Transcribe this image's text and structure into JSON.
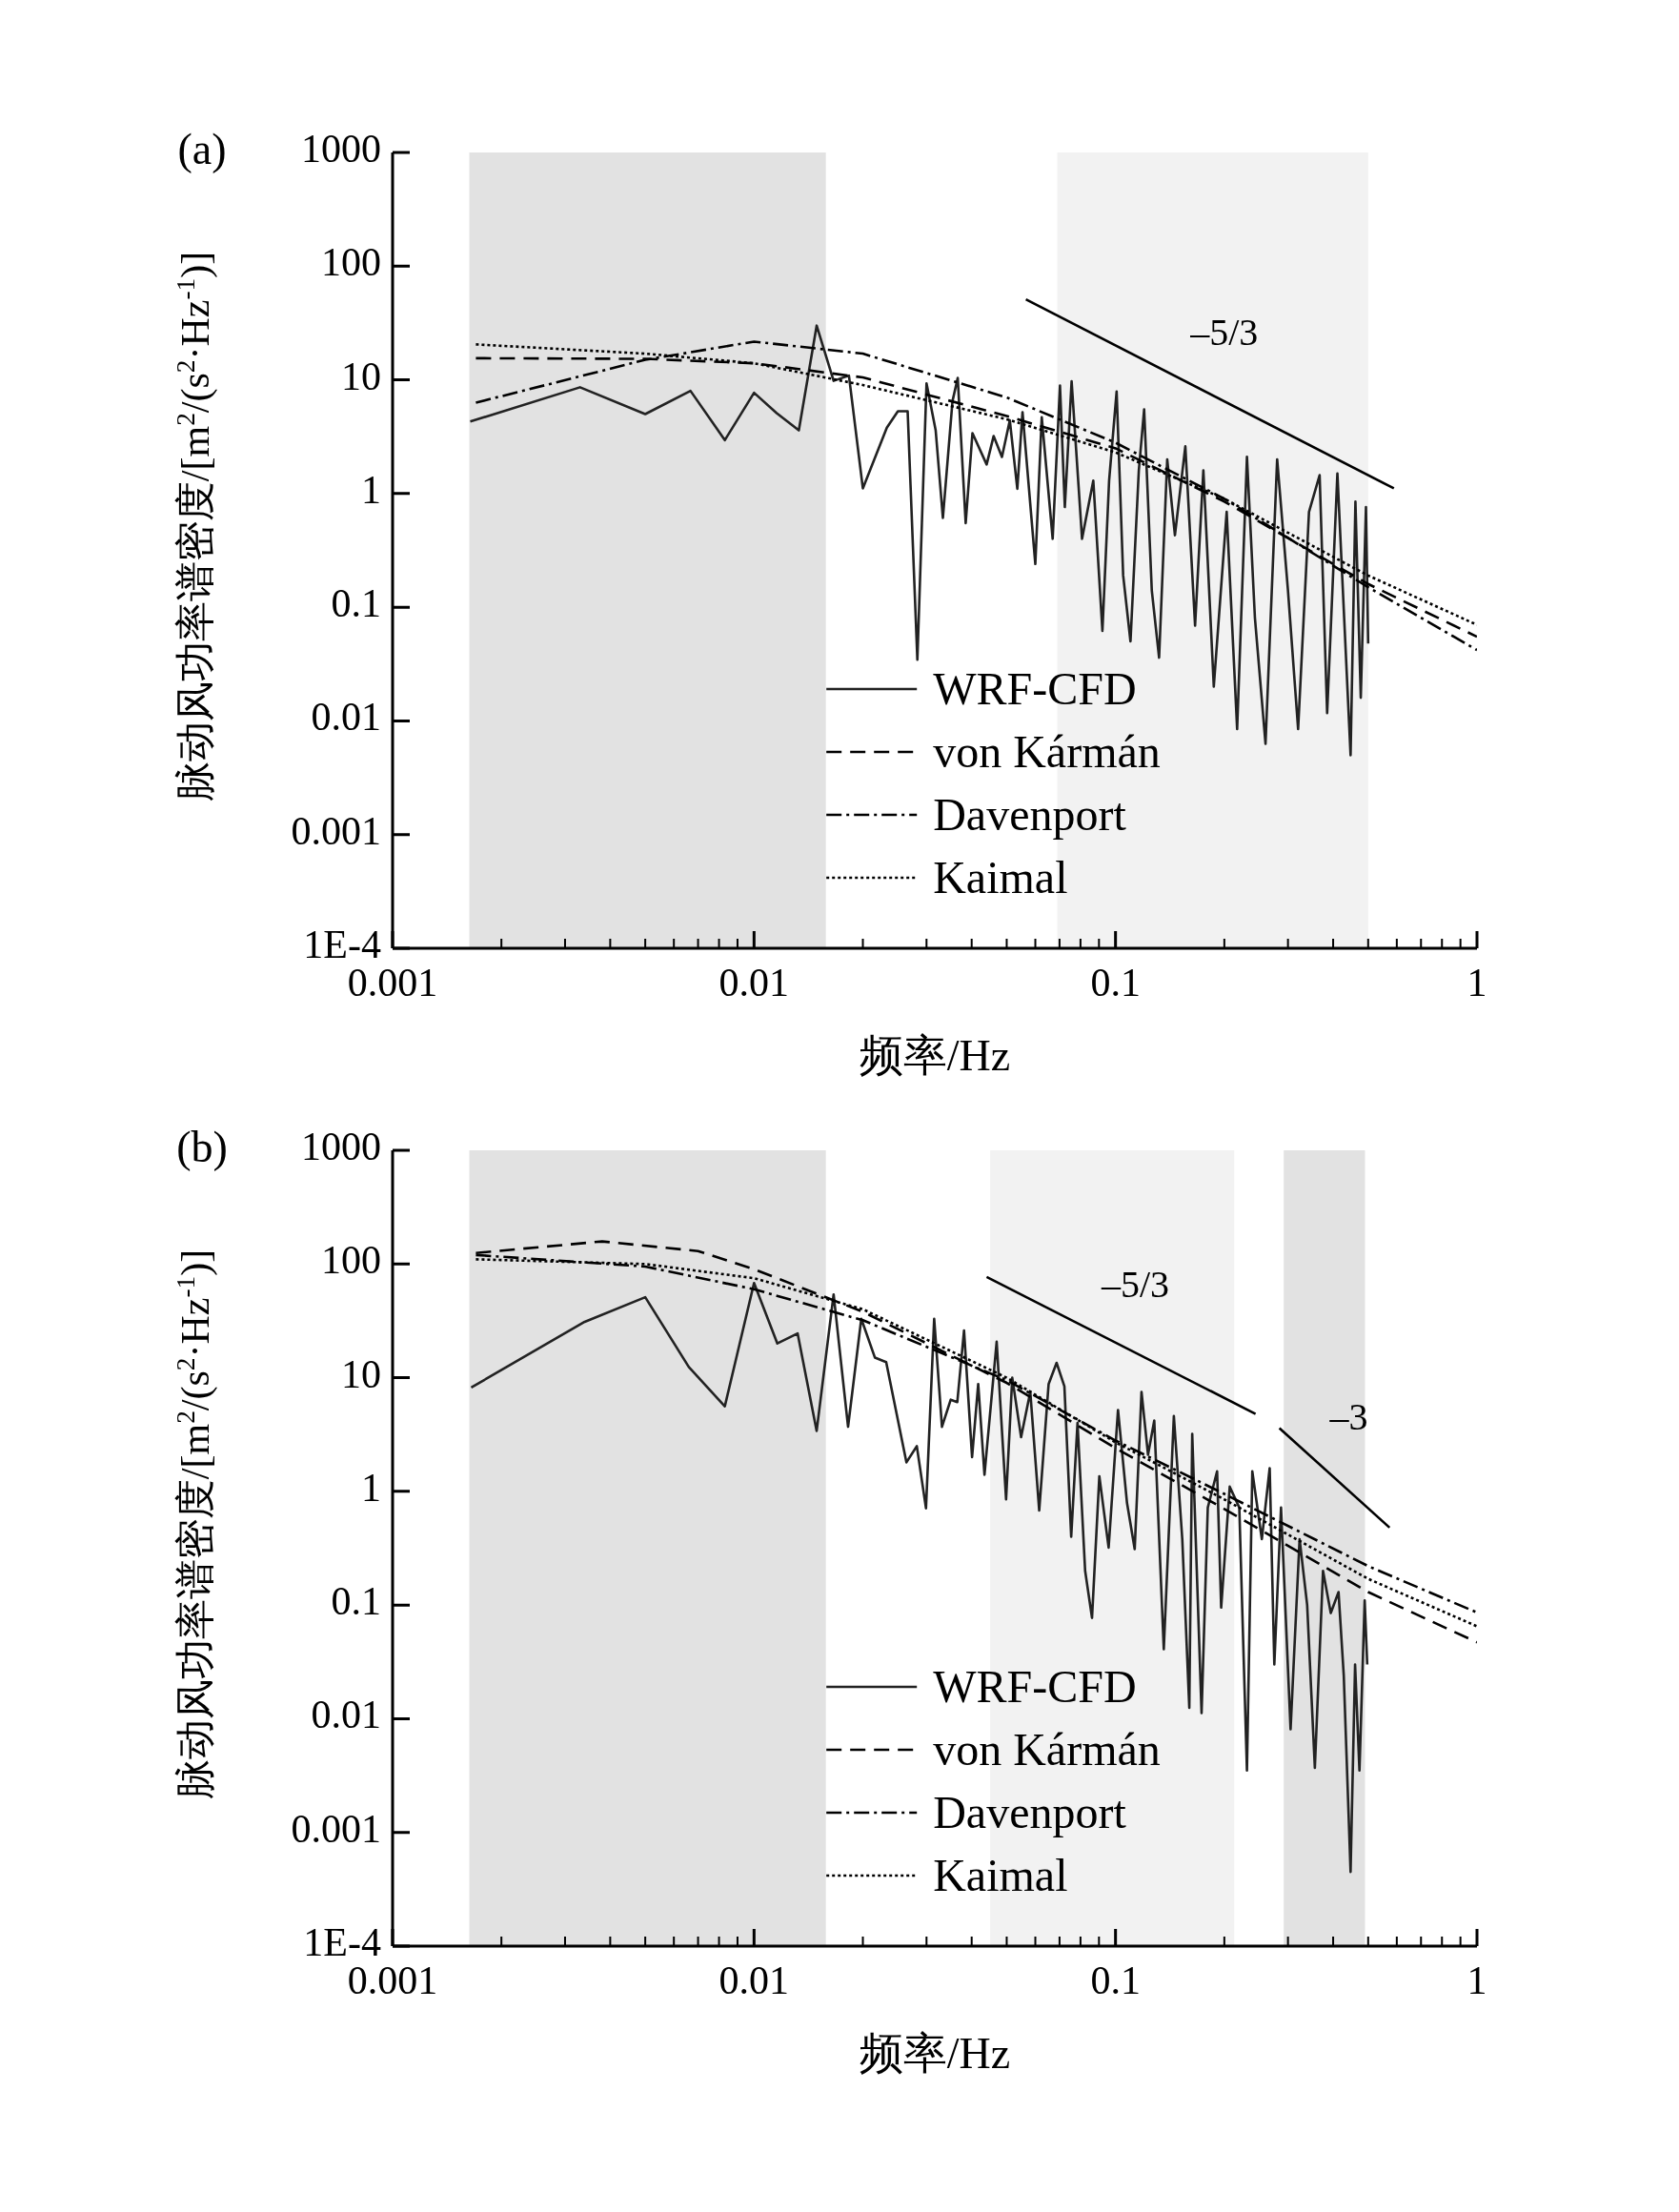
{
  "chart_data": [
    {
      "type": "line",
      "title": "(a)",
      "xlabel": "频率/Hz",
      "ylabel": "脉动风功率谱密度/[m$^{2}$/(s$^{2}$·Hz$^{-1}$)]",
      "log": "xy",
      "xlim": [
        0.001,
        1
      ],
      "ylim": [
        0.0001,
        1000
      ],
      "xticks": [
        0.001,
        0.01,
        0.1,
        1
      ],
      "yticks": [
        {
          "value": 0.0001,
          "label": "1E-4"
        },
        0.001,
        0.01,
        0.1,
        1,
        10,
        100,
        1000
      ],
      "legend": "bottom",
      "bands": [
        {
          "axis": "x",
          "from": 0.00163,
          "to": 0.0158,
          "color": "#e2e2e2"
        },
        {
          "axis": "x",
          "from": 0.069,
          "to": 0.5,
          "color": "#f2f2f2"
        }
      ],
      "annotations": [
        "–5/3"
      ],
      "series": [
        {
          "name": "WRF-CFD",
          "color": "#222222",
          "line_style": "solid",
          "x": [
            0.00164,
            0.0033,
            0.005,
            0.00667,
            0.0083,
            0.01,
            0.01155,
            0.0133,
            0.0149,
            0.0166,
            0.0183,
            0.02,
            0.0233,
            0.025,
            0.0266,
            0.0283,
            0.03,
            0.0318,
            0.0333,
            0.0354,
            0.0366,
            0.0385,
            0.0402,
            0.044,
            0.046,
            0.0485,
            0.051,
            0.0535,
            0.0553,
            0.06,
            0.0625,
            0.067,
            0.0702,
            0.0724,
            0.0756,
            0.0808,
            0.0868,
            0.092,
            0.096,
            0.1007,
            0.105,
            0.11,
            0.116,
            0.12,
            0.126,
            0.132,
            0.139,
            0.146,
            0.156,
            0.166,
            0.175,
            0.187,
            0.203,
            0.217,
            0.231,
            0.243,
            0.26,
            0.28,
            0.3,
            0.32,
            0.343,
            0.367,
            0.385,
            0.411,
            0.447,
            0.461,
            0.477,
            0.493,
            0.5
          ],
          "values": [
            4.3,
            8.6,
            5.0,
            8.0,
            2.95,
            7.7,
            5.1,
            3.6,
            30,
            9.8,
            10.9,
            1.11,
            3.8,
            5.3,
            5.3,
            0.0345,
            9.3,
            3.6,
            0.61,
            6.5,
            10.4,
            0.55,
            3.4,
            1.8,
            3.2,
            2.1,
            4.4,
            1.1,
            5.2,
            0.24,
            4.7,
            0.4,
            8.9,
            0.76,
            9.7,
            0.4,
            1.3,
            0.062,
            1.3,
            7.9,
            0.19,
            0.05,
            1.6,
            5.5,
            0.14,
            0.036,
            2.0,
            0.43,
            2.6,
            0.069,
            1.6,
            0.02,
            0.69,
            0.0085,
            2.1,
            0.081,
            0.0063,
            2.0,
            0.14,
            0.0085,
            0.69,
            1.45,
            0.0117,
            1.5,
            0.005,
            0.85,
            0.016,
            0.76,
            0.048
          ]
        },
        {
          "name": "von Kármán",
          "color": "#000000",
          "line_style": "dashed",
          "x": [
            0.0017,
            0.005,
            0.01,
            0.02,
            0.05,
            0.1,
            0.2,
            0.5,
            1
          ],
          "values": [
            15.5,
            15.3,
            14,
            10.5,
            4.8,
            2.5,
            0.85,
            0.16,
            0.055
          ]
        },
        {
          "name": "Davenport",
          "color": "#000000",
          "line_style": "dashdot",
          "x": [
            0.0017,
            0.005,
            0.01,
            0.02,
            0.05,
            0.1,
            0.2,
            0.5,
            1
          ],
          "values": [
            6.3,
            15,
            21.7,
            17,
            7,
            2.8,
            0.9,
            0.15,
            0.042
          ]
        },
        {
          "name": "Kaimal",
          "color": "#000000",
          "line_style": "dotted",
          "x": [
            0.0017,
            0.005,
            0.01,
            0.02,
            0.05,
            0.1,
            0.2,
            0.5,
            1
          ],
          "values": [
            20.5,
            17,
            14,
            9,
            4.5,
            2.3,
            0.9,
            0.19,
            0.07
          ]
        },
        {
          "color": "#000000",
          "line_style": "solid",
          "x": [
            0.0565,
            0.589
          ],
          "values": [
            51,
            1.11
          ]
        }
      ]
    },
    {
      "type": "line",
      "title": "(b)",
      "xlabel": "频率/Hz",
      "ylabel": "脉动风功率谱密度/[m$^{2}$/(s$^{2}$·Hz$^{-1}$)]",
      "log": "xy",
      "xlim": [
        0.001,
        1
      ],
      "ylim": [
        0.0001,
        1000
      ],
      "xticks": [
        0.001,
        0.01,
        0.1,
        1
      ],
      "yticks": [
        {
          "value": 0.0001,
          "label": "1E-4"
        },
        0.001,
        0.01,
        0.1,
        1,
        10,
        100,
        1000
      ],
      "legend": "bottom",
      "bands": [
        {
          "axis": "x",
          "from": 0.00163,
          "to": 0.0158,
          "color": "#e2e2e2"
        },
        {
          "axis": "x",
          "from": 0.045,
          "to": 0.213,
          "color": "#f2f2f2"
        },
        {
          "axis": "x",
          "from": 0.292,
          "to": 0.49,
          "color": "#e2e2e2"
        }
      ],
      "annotations": [
        "–5/3",
        "–3"
      ],
      "series": [
        {
          "name": "WRF-CFD",
          "color": "#222222",
          "line_style": "solid",
          "x": [
            0.00165,
            0.0034,
            0.005,
            0.0066,
            0.0083,
            0.01,
            0.0116,
            0.0132,
            0.0149,
            0.0166,
            0.0182,
            0.0198,
            0.0216,
            0.0232,
            0.0264,
            0.0282,
            0.0299,
            0.0315,
            0.0331,
            0.035,
            0.0365,
            0.0381,
            0.0401,
            0.0417,
            0.0434,
            0.0469,
            0.0498,
            0.0518,
            0.0548,
            0.0581,
            0.0615,
            0.0653,
            0.0687,
            0.0722,
            0.0754,
            0.0785,
            0.0824,
            0.0861,
            0.0902,
            0.0957,
            0.1016,
            0.1076,
            0.113,
            0.118,
            0.123,
            0.128,
            0.136,
            0.145,
            0.153,
            0.16,
            0.163,
            0.173,
            0.18,
            0.191,
            0.196,
            0.207,
            0.22,
            0.231,
            0.239,
            0.254,
            0.267,
            0.275,
            0.287,
            0.305,
            0.323,
            0.339,
            0.356,
            0.375,
            0.394,
            0.414,
            0.428,
            0.447,
            0.46,
            0.473,
            0.489,
            0.497
          ],
          "values": [
            8.2,
            31,
            51,
            12.4,
            5.6,
            68,
            20,
            24.5,
            3.4,
            54,
            3.7,
            33,
            15,
            13.7,
            1.8,
            2.5,
            0.71,
            33,
            3.7,
            6.4,
            6.1,
            26,
            2.0,
            8.8,
            1.4,
            20.7,
            0.85,
            10,
            3.0,
            7.5,
            0.68,
            8.8,
            13.5,
            8.4,
            0.4,
            4.0,
            0.2,
            0.077,
            1.36,
            0.32,
            5.2,
            0.79,
            0.31,
            7.5,
            2.1,
            4.2,
            0.041,
            4.6,
            0.38,
            0.0125,
            3.2,
            0.0112,
            0.72,
            1.5,
            0.095,
            1.1,
            0.72,
            0.0035,
            1.5,
            0.38,
            1.6,
            0.03,
            0.72,
            0.0081,
            0.38,
            0.1,
            0.0037,
            0.2,
            0.085,
            0.13,
            0.024,
            0.00045,
            0.03,
            0.0035,
            0.11,
            0.03
          ]
        },
        {
          "name": "von Kármán",
          "color": "#000000",
          "line_style": "dashed",
          "x": [
            0.0017,
            0.0038,
            0.007,
            0.01,
            0.02,
            0.05,
            0.1,
            0.2,
            0.5,
            1
          ],
          "values": [
            125,
            158,
            130,
            90,
            38,
            9,
            2.4,
            0.7,
            0.13,
            0.047
          ]
        },
        {
          "name": "Davenport",
          "color": "#000000",
          "line_style": "dashdot",
          "x": [
            0.0017,
            0.005,
            0.01,
            0.02,
            0.05,
            0.1,
            0.2,
            0.5,
            1
          ],
          "values": [
            120,
            95,
            60,
            32,
            9.5,
            2.8,
            0.95,
            0.22,
            0.086
          ]
        },
        {
          "name": "Kaimal",
          "color": "#000000",
          "line_style": "dotted",
          "x": [
            0.0017,
            0.005,
            0.01,
            0.02,
            0.05,
            0.1,
            0.2,
            0.5,
            1
          ],
          "values": [
            110,
            100,
            75,
            40,
            10,
            2.7,
            0.85,
            0.17,
            0.065
          ]
        },
        {
          "color": "#000000",
          "line_style": "solid",
          "x": [
            0.044,
            0.244
          ],
          "values": [
            77,
            4.8
          ]
        },
        {
          "color": "#000000",
          "line_style": "solid",
          "x": [
            0.284,
            0.573
          ],
          "values": [
            3.6,
            0.48
          ]
        }
      ]
    }
  ]
}
